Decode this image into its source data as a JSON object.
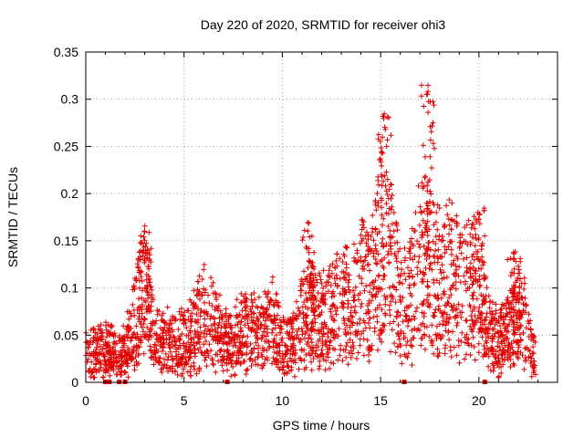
{
  "chart_data": {
    "type": "scatter",
    "title": "Day 220 of 2020, SRMTID for receiver ohi3",
    "xlabel": "GPS time / hours",
    "ylabel": "SRMTID / TECUs",
    "xlim": [
      0,
      24
    ],
    "ylim": [
      0,
      0.35
    ],
    "xticks": [
      0,
      5,
      10,
      15,
      20
    ],
    "xtick_labels": [
      "0",
      "5",
      "10",
      "15",
      "20"
    ],
    "yticks": [
      0,
      0.05,
      0.1,
      0.15,
      0.2,
      0.25,
      0.3,
      0.35
    ],
    "ytick_labels": [
      "0",
      "0.05",
      "0.1",
      "0.15",
      "0.2",
      "0.25",
      "0.3",
      "0.35"
    ],
    "grid": true,
    "marker": "+",
    "color": "#e00000",
    "profile": [
      [
        0.0,
        0.03
      ],
      [
        0.5,
        0.03
      ],
      [
        1.0,
        0.03
      ],
      [
        1.5,
        0.03
      ],
      [
        2.0,
        0.03
      ],
      [
        2.5,
        0.06
      ],
      [
        3.0,
        0.1
      ],
      [
        3.5,
        0.04
      ],
      [
        4.0,
        0.04
      ],
      [
        4.5,
        0.04
      ],
      [
        5.0,
        0.04
      ],
      [
        5.5,
        0.05
      ],
      [
        6.0,
        0.07
      ],
      [
        6.5,
        0.06
      ],
      [
        7.0,
        0.04
      ],
      [
        7.5,
        0.04
      ],
      [
        8.0,
        0.05
      ],
      [
        8.5,
        0.05
      ],
      [
        9.0,
        0.05
      ],
      [
        9.5,
        0.06
      ],
      [
        10.0,
        0.04
      ],
      [
        10.5,
        0.04
      ],
      [
        11.0,
        0.06
      ],
      [
        11.5,
        0.07
      ],
      [
        12.0,
        0.06
      ],
      [
        12.5,
        0.07
      ],
      [
        13.0,
        0.08
      ],
      [
        13.5,
        0.08
      ],
      [
        14.0,
        0.1
      ],
      [
        14.5,
        0.09
      ],
      [
        15.0,
        0.14
      ],
      [
        15.5,
        0.12
      ],
      [
        16.0,
        0.08
      ],
      [
        16.5,
        0.08
      ],
      [
        17.0,
        0.12
      ],
      [
        17.5,
        0.12
      ],
      [
        18.0,
        0.1
      ],
      [
        18.5,
        0.11
      ],
      [
        19.0,
        0.09
      ],
      [
        19.5,
        0.09
      ],
      [
        20.0,
        0.1
      ],
      [
        20.5,
        0.05
      ],
      [
        21.0,
        0.04
      ],
      [
        21.5,
        0.05
      ],
      [
        22.0,
        0.07
      ],
      [
        22.5,
        0.05
      ],
      [
        23.0,
        0.02
      ]
    ],
    "peaks": [
      {
        "x": 3.0,
        "y": 0.16
      },
      {
        "x": 15.2,
        "y": 0.285
      },
      {
        "x": 17.4,
        "y": 0.315
      },
      {
        "x": 20.0,
        "y": 0.185
      },
      {
        "x": 11.3,
        "y": 0.17
      },
      {
        "x": 21.8,
        "y": 0.14
      }
    ],
    "gaps": [
      {
        "x": 1.0,
        "y": 0
      },
      {
        "x": 1.2,
        "y": 0
      },
      {
        "x": 1.7,
        "y": 0
      },
      {
        "x": 2.0,
        "y": 0
      },
      {
        "x": 7.2,
        "y": 0
      },
      {
        "x": 16.2,
        "y": 0
      },
      {
        "x": 20.3,
        "y": 0
      }
    ]
  }
}
